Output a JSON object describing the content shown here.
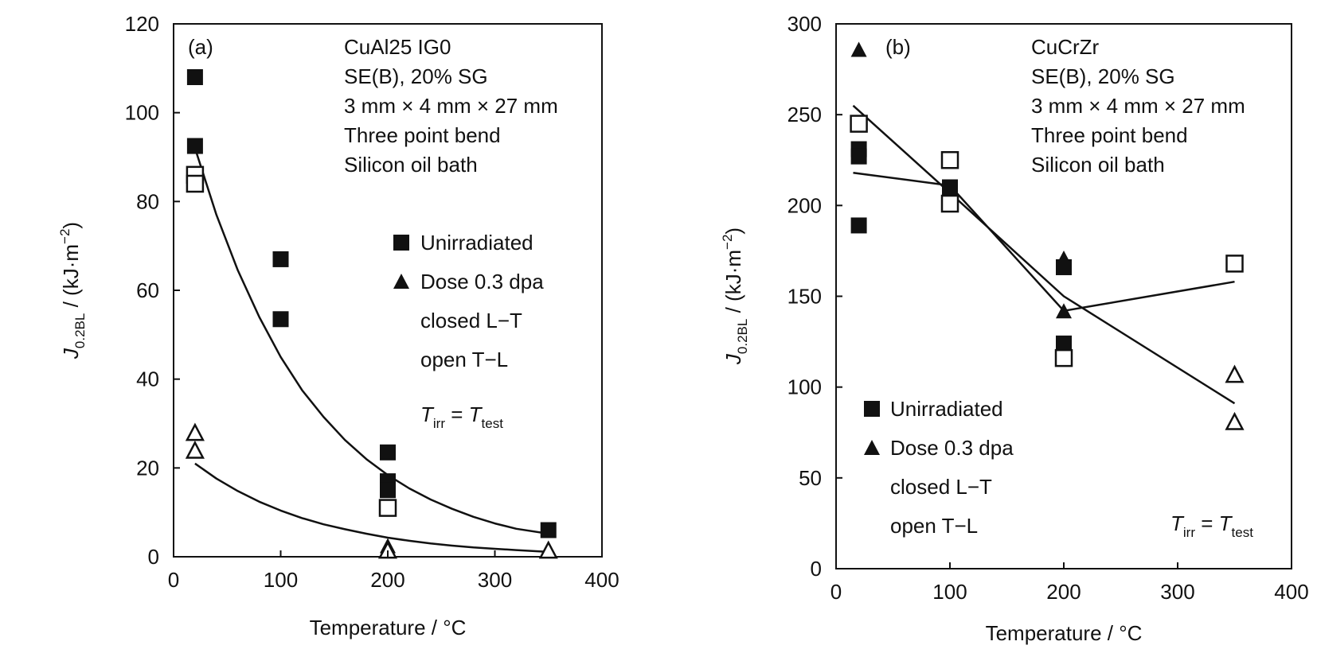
{
  "colors": {
    "ink": "#111111",
    "background": "#ffffff"
  },
  "chart_data": [
    {
      "type": "scatter",
      "panel_label": "(a)",
      "annotations": [
        "CuAl25 IG0",
        "SE(B), 20% SG",
        "3 mm × 4 mm × 27 mm",
        "Three point bend",
        "Silicon oil bath"
      ],
      "xlabel": "Temperature / °C",
      "ylabel": {
        "symbol": "J",
        "subscript": "0.2BL",
        "rest": " / (kJ·m",
        "exponent": "−2",
        "close": ")"
      },
      "xlim": [
        0,
        400
      ],
      "ylim": [
        0,
        120
      ],
      "xticks": [
        0,
        100,
        200,
        300,
        400
      ],
      "yticks": [
        0,
        20,
        40,
        60,
        80,
        100,
        120
      ],
      "legend": {
        "placement": "middle-right",
        "entries": [
          {
            "label": "Unirradiated",
            "marker": "filled-square"
          },
          {
            "label": "Dose 0.3 dpa",
            "marker": "filled-triangle"
          },
          {
            "label": "closed L−T",
            "marker": "none"
          },
          {
            "label": "open T−L",
            "marker": "none"
          }
        ]
      },
      "condition": {
        "T": "T",
        "irr": "irr",
        "eq": " = ",
        "test": "test"
      },
      "points": [
        {
          "x": 20,
          "y": 108,
          "marker": "filled-square"
        },
        {
          "x": 20,
          "y": 92.5,
          "marker": "filled-square"
        },
        {
          "x": 20,
          "y": 86,
          "marker": "open-square"
        },
        {
          "x": 20,
          "y": 84,
          "marker": "open-square"
        },
        {
          "x": 100,
          "y": 67,
          "marker": "filled-square"
        },
        {
          "x": 100,
          "y": 53.5,
          "marker": "filled-square"
        },
        {
          "x": 200,
          "y": 23.5,
          "marker": "filled-square"
        },
        {
          "x": 200,
          "y": 17,
          "marker": "filled-square"
        },
        {
          "x": 200,
          "y": 15,
          "marker": "filled-square"
        },
        {
          "x": 200,
          "y": 11,
          "marker": "open-square"
        },
        {
          "x": 350,
          "y": 6,
          "marker": "filled-square"
        },
        {
          "x": 20,
          "y": 28,
          "marker": "open-triangle"
        },
        {
          "x": 20,
          "y": 24,
          "marker": "open-triangle"
        },
        {
          "x": 200,
          "y": 2.5,
          "marker": "filled-triangle"
        },
        {
          "x": 200,
          "y": 1.5,
          "marker": "open-triangle"
        },
        {
          "x": 350,
          "y": 1.5,
          "marker": "open-triangle"
        }
      ],
      "curves": [
        {
          "x": [
            20,
            40,
            60,
            80,
            100,
            120,
            140,
            160,
            180,
            200,
            220,
            240,
            260,
            280,
            300,
            320,
            350
          ],
          "y": [
            92,
            77,
            64.5,
            54,
            45,
            37.5,
            31.5,
            26.3,
            22,
            18.4,
            15.4,
            12.9,
            10.8,
            9.0,
            7.5,
            6.3,
            5.2
          ]
        },
        {
          "x": [
            20,
            40,
            60,
            80,
            100,
            120,
            140,
            160,
            180,
            200,
            220,
            240,
            260,
            280,
            300,
            320,
            350
          ],
          "y": [
            21,
            17.6,
            14.8,
            12.4,
            10.4,
            8.7,
            7.3,
            6.2,
            5.2,
            4.3,
            3.6,
            3.0,
            2.5,
            2.1,
            1.8,
            1.5,
            1.1
          ]
        }
      ]
    },
    {
      "type": "scatter",
      "panel_label": "(b)",
      "annotations": [
        "CuCrZr",
        "SE(B), 20% SG",
        "3 mm × 4 mm × 27 mm",
        "Three point bend",
        "Silicon oil bath"
      ],
      "xlabel": "Temperature / °C",
      "ylabel": {
        "symbol": "J",
        "subscript": "0.2BL",
        "rest": " / (kJ·m",
        "exponent": "−2",
        "close": ")"
      },
      "xlim": [
        0,
        400
      ],
      "ylim": [
        0,
        300
      ],
      "xticks": [
        0,
        100,
        200,
        300,
        400
      ],
      "yticks": [
        0,
        50,
        100,
        150,
        200,
        250,
        300
      ],
      "legend": {
        "placement": "bottom-left",
        "entries": [
          {
            "label": "Unirradiated",
            "marker": "filled-square"
          },
          {
            "label": "Dose 0.3 dpa",
            "marker": "filled-triangle"
          },
          {
            "label": "closed L−T",
            "marker": "none"
          },
          {
            "label": "open T−L",
            "marker": "none"
          }
        ]
      },
      "condition": {
        "T": "T",
        "irr": "irr",
        "eq": " = ",
        "test": "test"
      },
      "points": [
        {
          "x": 20,
          "y": 286,
          "marker": "filled-triangle"
        },
        {
          "x": 20,
          "y": 245,
          "marker": "open-square"
        },
        {
          "x": 20,
          "y": 231,
          "marker": "filled-square"
        },
        {
          "x": 20,
          "y": 227,
          "marker": "filled-square"
        },
        {
          "x": 20,
          "y": 189,
          "marker": "filled-square"
        },
        {
          "x": 100,
          "y": 225,
          "marker": "open-square"
        },
        {
          "x": 100,
          "y": 210,
          "marker": "filled-square"
        },
        {
          "x": 100,
          "y": 207,
          "marker": "filled-triangle"
        },
        {
          "x": 100,
          "y": 201,
          "marker": "open-square"
        },
        {
          "x": 200,
          "y": 171,
          "marker": "filled-triangle"
        },
        {
          "x": 200,
          "y": 166,
          "marker": "filled-square"
        },
        {
          "x": 200,
          "y": 142,
          "marker": "filled-triangle"
        },
        {
          "x": 200,
          "y": 124,
          "marker": "filled-square"
        },
        {
          "x": 200,
          "y": 116,
          "marker": "open-square"
        },
        {
          "x": 350,
          "y": 168,
          "marker": "open-square"
        },
        {
          "x": 350,
          "y": 107,
          "marker": "open-triangle"
        },
        {
          "x": 350,
          "y": 81,
          "marker": "open-triangle"
        }
      ],
      "curves": [
        {
          "x": [
            15,
            100,
            200,
            350
          ],
          "y": [
            218,
            211,
            142,
            158
          ]
        },
        {
          "x": [
            15,
            100,
            200,
            350
          ],
          "y": [
            255,
            207,
            150,
            91
          ]
        }
      ]
    }
  ]
}
